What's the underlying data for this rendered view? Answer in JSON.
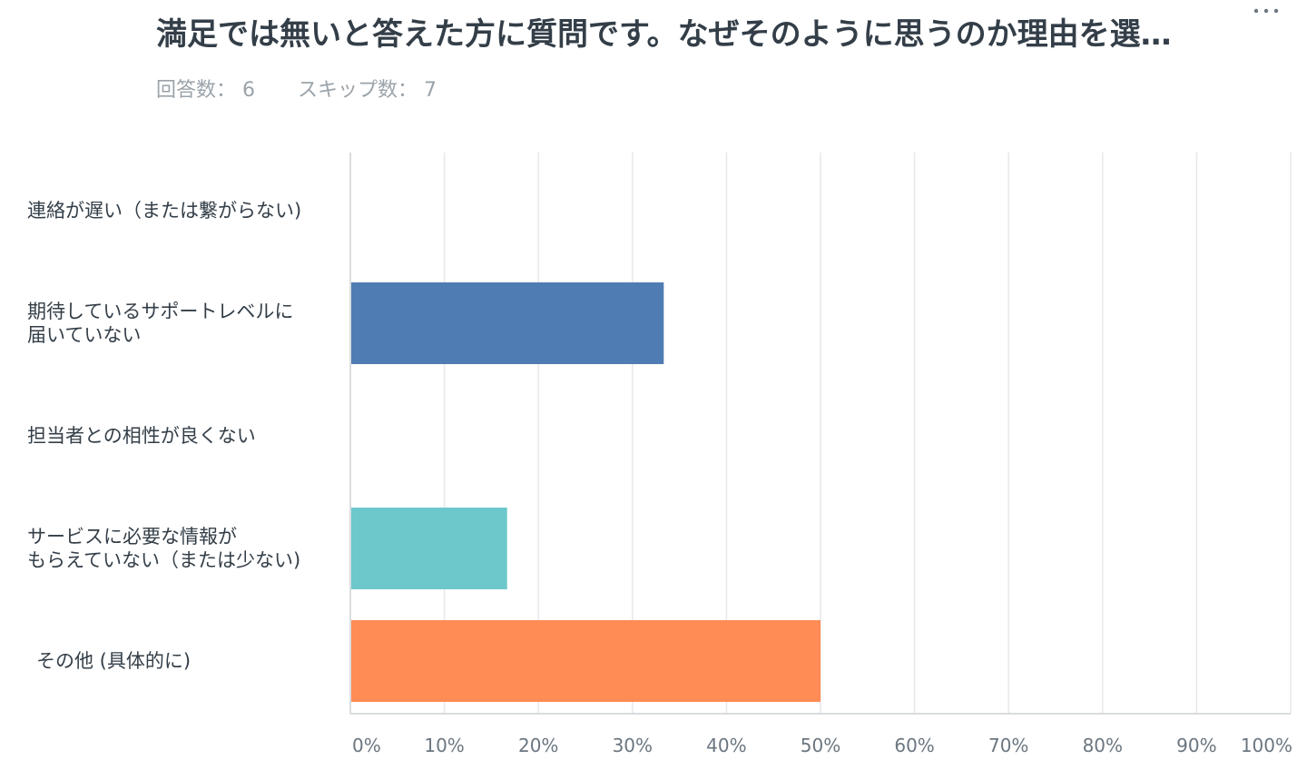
{
  "header": {
    "title": "満足では無いと答えた方に質問です。なぜそのように思うのか理由を選…"
  },
  "stats": {
    "answered_label": "回答数：",
    "answered_value": "6",
    "skipped_label": "スキップ数：",
    "skipped_value": "7"
  },
  "menu": {
    "icon": "more-icon"
  },
  "chart_data": {
    "type": "bar",
    "orientation": "horizontal",
    "categories": [
      [
        "連絡が遅い（または繋がらない)"
      ],
      [
        "期待しているサポートレベルに",
        "届いていない"
      ],
      [
        "担当者との相性が良くない"
      ],
      [
        "サービスに必要な情報が",
        "もらえていない（または少ない)"
      ],
      [
        "その他 (具体的に)"
      ]
    ],
    "values": [
      0,
      33.33,
      0,
      16.67,
      50
    ],
    "colors": [
      "#507cb4",
      "#507cb4",
      "#507cb4",
      "#6cc8cb",
      "#ff8b55"
    ],
    "xlim": [
      0,
      100
    ],
    "xticks": [
      "0%",
      "10%",
      "20%",
      "30%",
      "40%",
      "50%",
      "60%",
      "70%",
      "80%",
      "90%",
      "100%"
    ],
    "grid": true,
    "axis_color": "#d9dcdf",
    "grid_color": "#e6e8ea"
  }
}
